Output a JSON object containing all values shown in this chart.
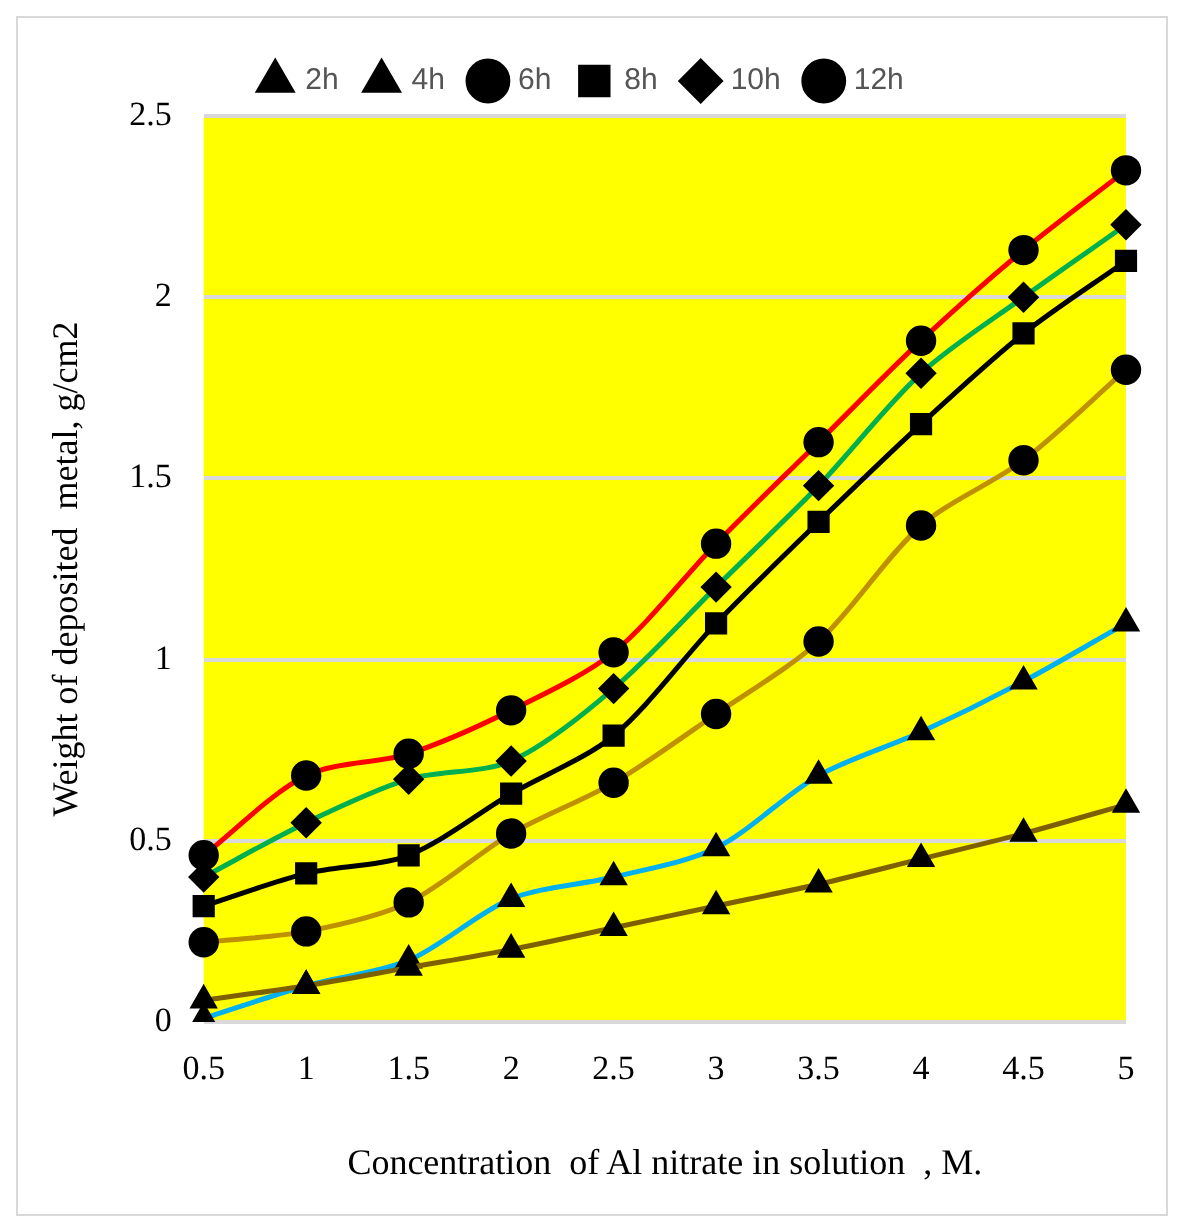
{
  "chart_data": {
    "type": "line",
    "xlabel": "Concentration  of Al nitrate in solution  , M.",
    "ylabel": "Weight of deposited  metal, g/cm2",
    "categories": [
      "0.5",
      "1",
      "1.5",
      "2",
      "2.5",
      "3",
      "3.5",
      "4",
      "4.5",
      "5"
    ],
    "series": [
      {
        "name": "2h",
        "color": "#7f6000",
        "marker": "triangle",
        "values": [
          0.06,
          0.1,
          0.15,
          0.2,
          0.26,
          0.32,
          0.38,
          0.45,
          0.52,
          0.6
        ]
      },
      {
        "name": "4h",
        "color": "#00b0f0",
        "marker": "triangle",
        "values": [
          0.01,
          0.1,
          0.17,
          0.34,
          0.4,
          0.48,
          0.68,
          0.8,
          0.94,
          1.1
        ]
      },
      {
        "name": "6h",
        "color": "#bf9000",
        "marker": "circle",
        "values": [
          0.22,
          0.25,
          0.33,
          0.52,
          0.66,
          0.85,
          1.05,
          1.37,
          1.55,
          1.8
        ]
      },
      {
        "name": "8h",
        "color": "#000000",
        "marker": "square",
        "values": [
          0.32,
          0.41,
          0.46,
          0.63,
          0.79,
          1.1,
          1.38,
          1.65,
          1.9,
          2.1
        ]
      },
      {
        "name": "10h",
        "color": "#00b050",
        "marker": "diamond",
        "values": [
          0.4,
          0.55,
          0.67,
          0.72,
          0.92,
          1.2,
          1.48,
          1.79,
          2.0,
          2.2
        ]
      },
      {
        "name": "12h",
        "color": "#ff0000",
        "marker": "circle",
        "values": [
          0.46,
          0.68,
          0.74,
          0.86,
          1.02,
          1.32,
          1.6,
          1.88,
          2.13,
          2.35
        ]
      }
    ],
    "ylim": [
      0,
      2.5
    ],
    "yticks": [
      0,
      0.5,
      1,
      1.5,
      2,
      2.5
    ],
    "grid": "y",
    "legend": "top",
    "line_style": "solid"
  }
}
